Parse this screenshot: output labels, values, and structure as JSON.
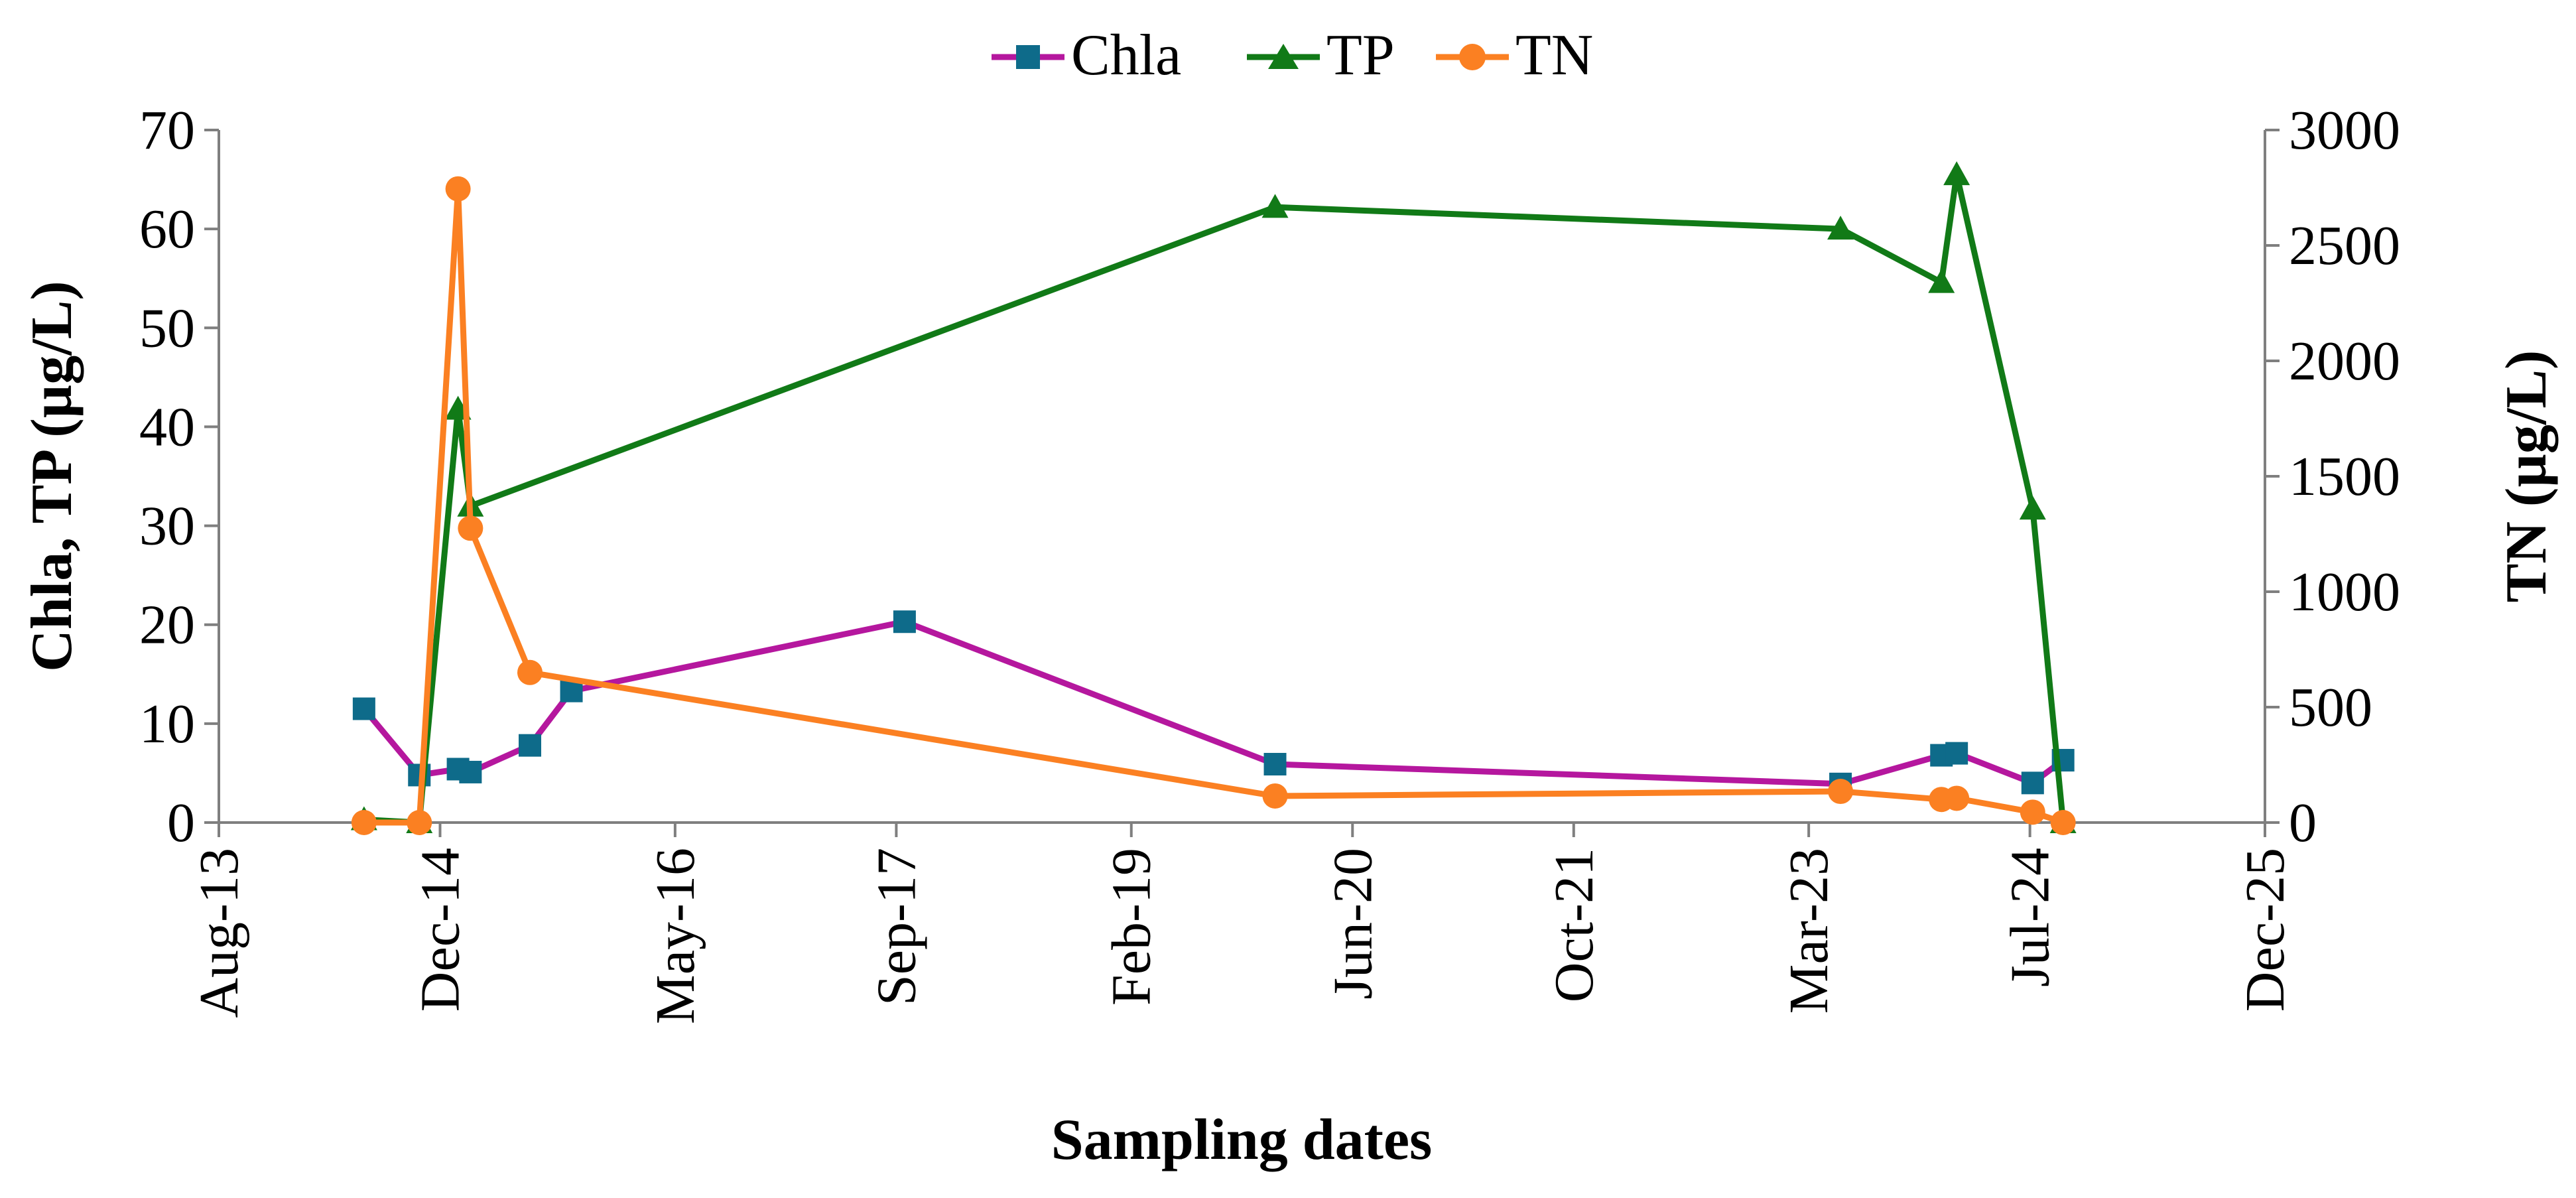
{
  "chart_data": {
    "type": "line",
    "title": "",
    "xlabel": "Sampling dates",
    "ylabel_left": "Chla, TP (µg/L)",
    "ylabel_right": "TN (µg/L)",
    "ylim_left": [
      0,
      70
    ],
    "ylim_right": [
      0,
      3000
    ],
    "yticks_left": [
      "0",
      "10",
      "20",
      "30",
      "40",
      "50",
      "60",
      "70"
    ],
    "yticks_right": [
      "0",
      "500",
      "1000",
      "1500",
      "2000",
      "2500",
      "3000"
    ],
    "x_ticks": [
      {
        "label": "Aug-13",
        "months": 0
      },
      {
        "label": "Dec-14",
        "months": 16
      },
      {
        "label": "May-16",
        "months": 33
      },
      {
        "label": "Sep-17",
        "months": 49
      },
      {
        "label": "Feb-19",
        "months": 66
      },
      {
        "label": "Jun-20",
        "months": 82
      },
      {
        "label": "Oct-21",
        "months": 98
      },
      {
        "label": "Mar-23",
        "months": 115
      },
      {
        "label": "Jul-24",
        "months": 131
      },
      {
        "label": "Dec-25",
        "months": 148
      }
    ],
    "x_unit": "months since Aug-2013",
    "legend": [
      "Chla",
      "TP",
      "TN"
    ],
    "legend_position": "top-center",
    "grid": false,
    "series": [
      {
        "name": "Chla",
        "axis": "left",
        "color": "#b5179e",
        "marker_color": "#0e6b8a",
        "marker": "square",
        "x": [
          10.5,
          14.5,
          17.3,
          18.2,
          22.5,
          25.5,
          49.6,
          76.4,
          117.3,
          124.6,
          125.7,
          131.2,
          133.4
        ],
        "values": [
          11.5,
          4.8,
          5.4,
          5.1,
          7.8,
          13.3,
          20.3,
          5.9,
          3.9,
          6.8,
          7.0,
          4.0,
          6.3
        ]
      },
      {
        "name": "TP",
        "axis": "left",
        "color": "#117a17",
        "marker_color": "#117a17",
        "marker": "triangle",
        "x": [
          10.5,
          14.5,
          17.3,
          18.2,
          76.4,
          117.3,
          124.6,
          125.7,
          131.2,
          133.4
        ],
        "values": [
          0.3,
          0.0,
          41.8,
          32.0,
          62.2,
          60.0,
          54.6,
          65.5,
          31.7,
          0.0
        ]
      },
      {
        "name": "TN",
        "axis": "right",
        "color": "#fb8022",
        "marker_color": "#fb8022",
        "marker": "circle",
        "x": [
          10.5,
          14.5,
          17.3,
          18.2,
          22.5,
          76.4,
          117.3,
          124.6,
          125.7,
          131.2,
          133.4
        ],
        "values": [
          0,
          0,
          2745,
          1275,
          650,
          115,
          135,
          100,
          105,
          45,
          0
        ]
      }
    ]
  }
}
